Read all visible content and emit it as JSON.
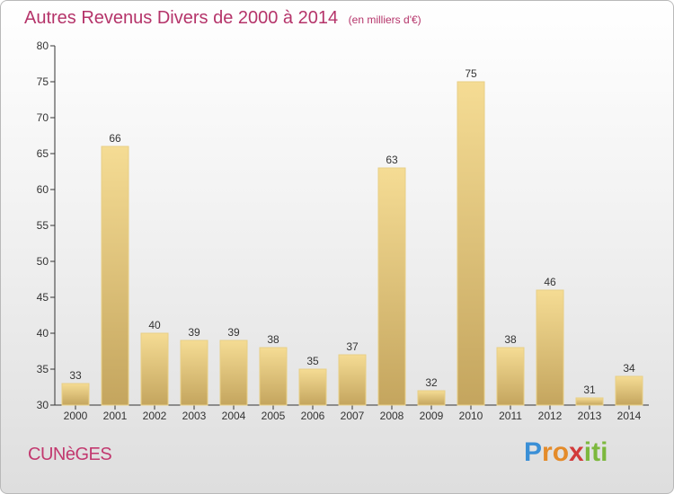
{
  "chart_data": {
    "type": "bar",
    "title": "Autres Revenus Divers de 2000 à 2014",
    "subtitle": "(en milliers d'€)",
    "categories": [
      "2000",
      "2001",
      "2002",
      "2003",
      "2004",
      "2005",
      "2006",
      "2007",
      "2008",
      "2009",
      "2010",
      "2011",
      "2012",
      "2013",
      "2014"
    ],
    "values": [
      33,
      66,
      40,
      39,
      39,
      38,
      35,
      37,
      63,
      32,
      75,
      38,
      46,
      31,
      34
    ],
    "ylim": [
      30,
      80
    ],
    "yticks": [
      30,
      35,
      40,
      45,
      50,
      55,
      60,
      65,
      70,
      75,
      80
    ],
    "grid": false,
    "bar_colors": {
      "top": "#f5dc94",
      "bottom": "#c4a55e",
      "edge": "#e8cf86"
    }
  },
  "footer": {
    "commune": "CUNèGES",
    "logo": {
      "letters": [
        "P",
        "r",
        "o",
        "x",
        "i",
        "t",
        "i"
      ],
      "colors": [
        "#3a8fd6",
        "#e48b2a",
        "#e48b2a",
        "#d23b3b",
        "#7cb83d",
        "#7cb83d",
        "#7cb83d"
      ]
    }
  }
}
